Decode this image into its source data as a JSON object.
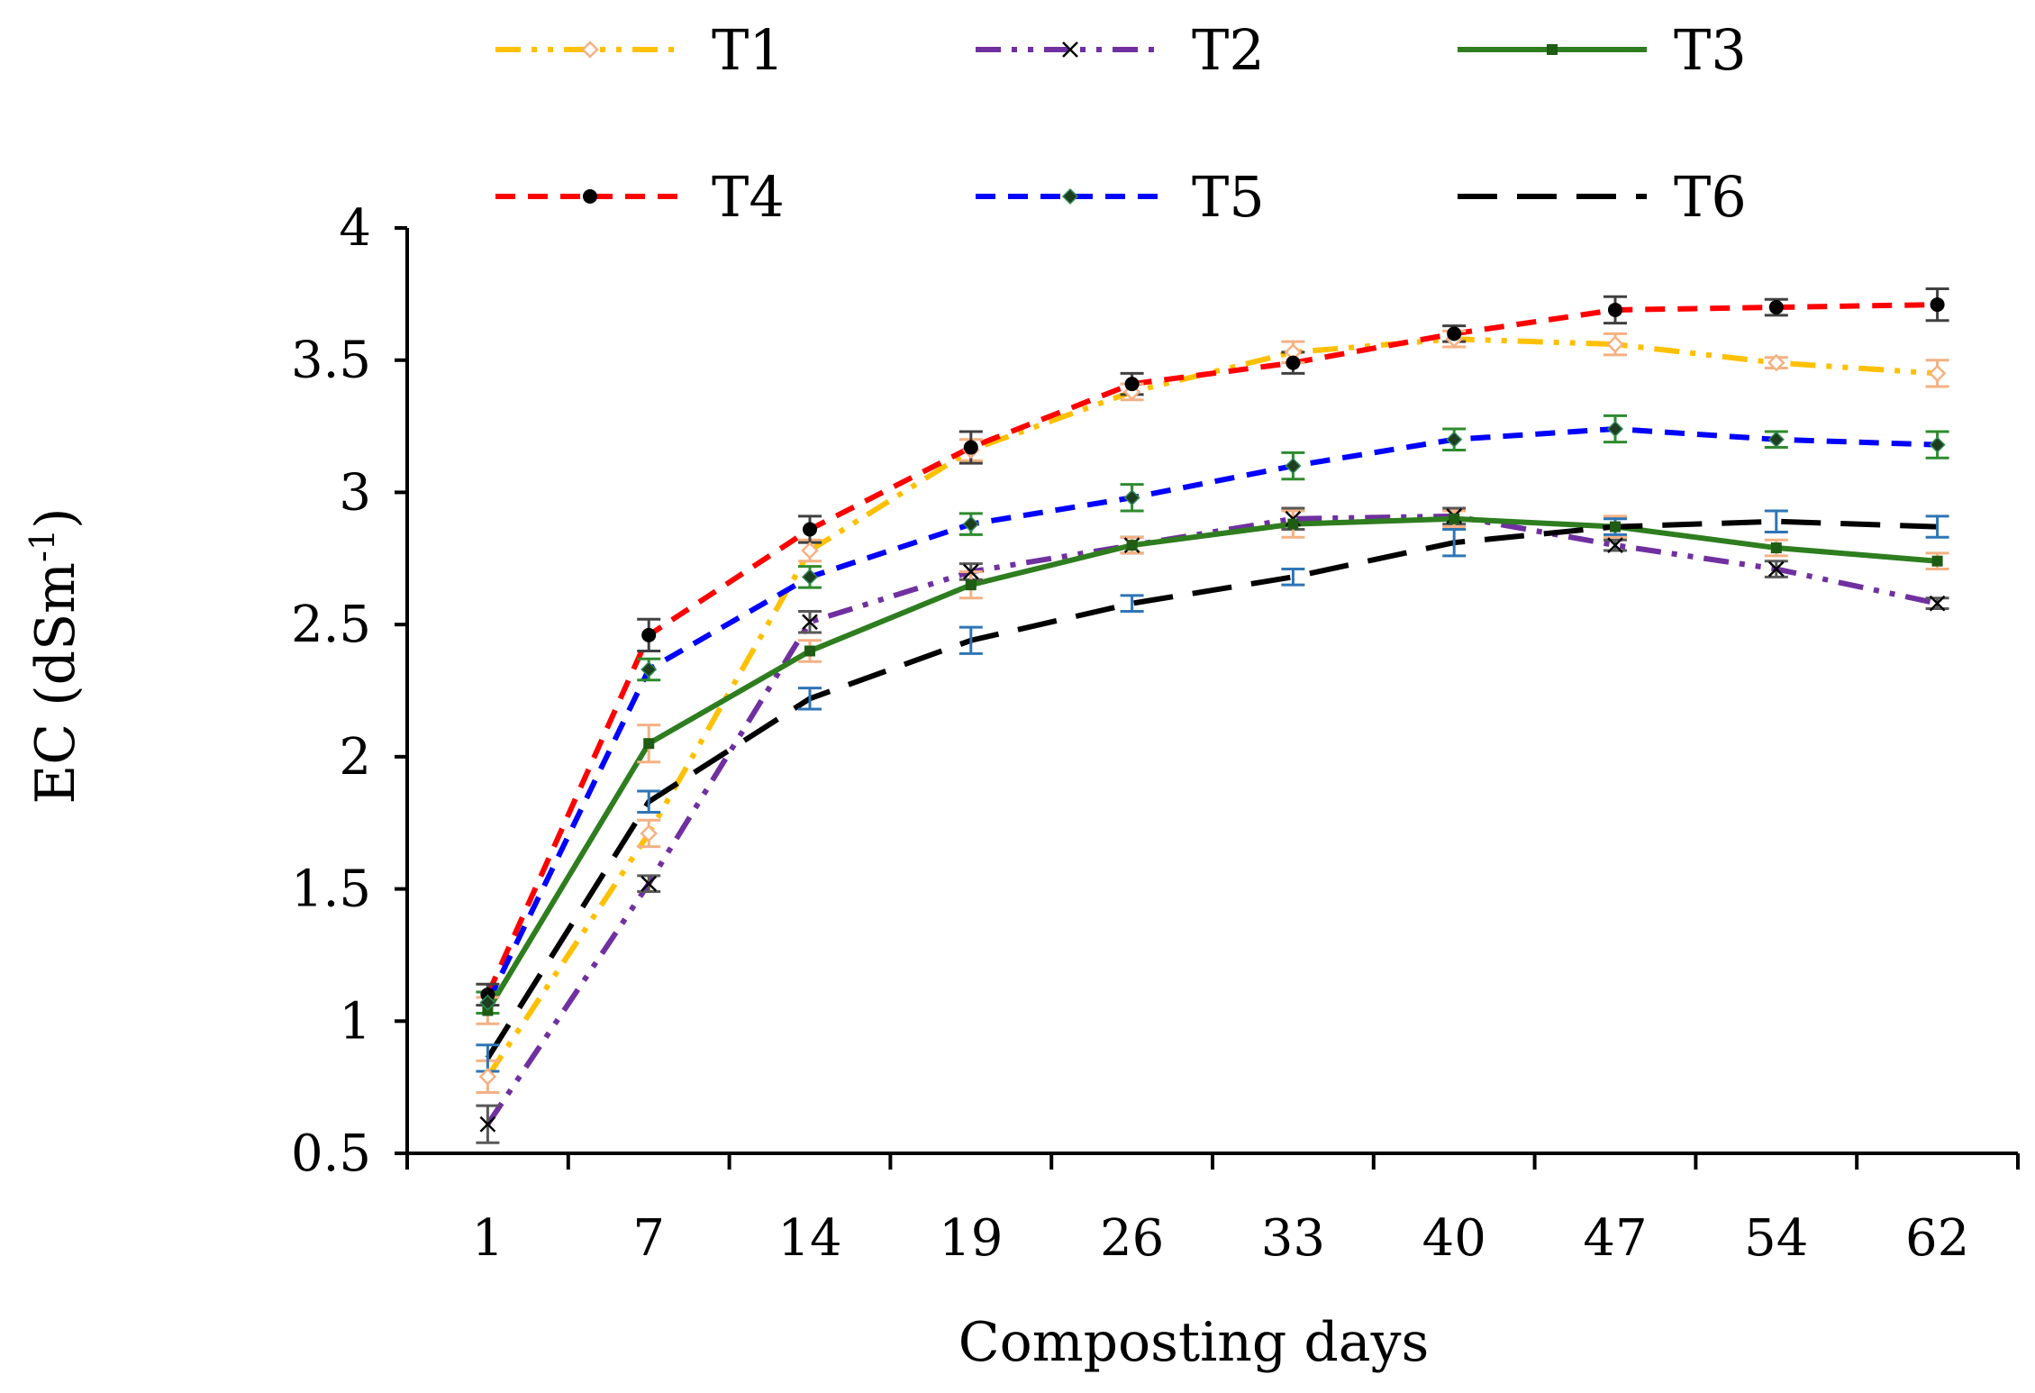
{
  "chart_data": {
    "type": "line",
    "title": "",
    "xlabel": "Composting days",
    "ylabel": "EC (dSm",
    "ylabel_superscript": "-1",
    "ylabel_close": ")",
    "categories": [
      "1",
      "7",
      "14",
      "19",
      "26",
      "33",
      "40",
      "47",
      "54",
      "62"
    ],
    "ylim": [
      0.5,
      4
    ],
    "yticks": [
      0.5,
      1,
      1.5,
      2,
      2.5,
      3,
      3.5,
      4
    ],
    "ytick_labels": [
      "0.5",
      "1",
      "1.5",
      "2",
      "2.5",
      "3",
      "3.5",
      "4"
    ],
    "grid": false,
    "legend_position": "top",
    "series": [
      {
        "name": "T1",
        "color": "#FFC000",
        "dash": "dashdotdot",
        "marker": "diamond-open",
        "marker_color": "#F4B183",
        "error_color": "#F4B183",
        "values": [
          0.79,
          1.71,
          2.78,
          3.16,
          3.38,
          3.53,
          3.58,
          3.56,
          3.49,
          3.45
        ],
        "errors": [
          0.06,
          0.05,
          0.04,
          0.04,
          0.03,
          0.04,
          0.03,
          0.04,
          0.02,
          0.05
        ]
      },
      {
        "name": "T2",
        "color": "#7030A0",
        "dash": "dashdotdot",
        "marker": "x",
        "marker_color": "#000000",
        "error_color": "#595959",
        "values": [
          0.61,
          1.52,
          2.51,
          2.7,
          2.8,
          2.9,
          2.91,
          2.8,
          2.71,
          2.58
        ],
        "errors": [
          0.07,
          0.03,
          0.04,
          0.03,
          0.03,
          0.04,
          0.03,
          0.02,
          0.03,
          0.02
        ]
      },
      {
        "name": "T3",
        "color": "#2E7D1F",
        "dash": "solid",
        "marker": "square",
        "marker_color": "#1F5C14",
        "error_color": "#F4B183",
        "values": [
          1.04,
          2.05,
          2.4,
          2.65,
          2.8,
          2.88,
          2.9,
          2.87,
          2.79,
          2.74
        ],
        "errors": [
          0.05,
          0.07,
          0.04,
          0.05,
          0.03,
          0.05,
          0.03,
          0.04,
          0.03,
          0.03
        ]
      },
      {
        "name": "T4",
        "color": "#FF0000",
        "dash": "dash",
        "marker": "circle",
        "marker_color": "#000000",
        "error_color": "#404040",
        "values": [
          1.1,
          2.46,
          2.86,
          3.17,
          3.41,
          3.49,
          3.6,
          3.69,
          3.7,
          3.71
        ],
        "errors": [
          0.04,
          0.06,
          0.05,
          0.06,
          0.04,
          0.04,
          0.03,
          0.05,
          0.03,
          0.06
        ]
      },
      {
        "name": "T5",
        "color": "#0000FF",
        "dash": "dash",
        "marker": "diamond",
        "marker_color": "#1F3D1F",
        "error_color": "#2E8B2E",
        "values": [
          1.07,
          2.33,
          2.68,
          2.88,
          2.98,
          3.1,
          3.2,
          3.24,
          3.2,
          3.18
        ],
        "errors": [
          0.04,
          0.04,
          0.04,
          0.04,
          0.05,
          0.05,
          0.04,
          0.05,
          0.03,
          0.05
        ]
      },
      {
        "name": "T6",
        "color": "#000000",
        "dash": "longdash",
        "marker": "none",
        "marker_color": "#000000",
        "error_color": "#2E75B6",
        "values": [
          0.86,
          1.83,
          2.22,
          2.44,
          2.58,
          2.68,
          2.81,
          2.87,
          2.89,
          2.87
        ],
        "errors": [
          0.05,
          0.04,
          0.04,
          0.05,
          0.03,
          0.03,
          0.05,
          0.03,
          0.04,
          0.04
        ]
      }
    ]
  }
}
